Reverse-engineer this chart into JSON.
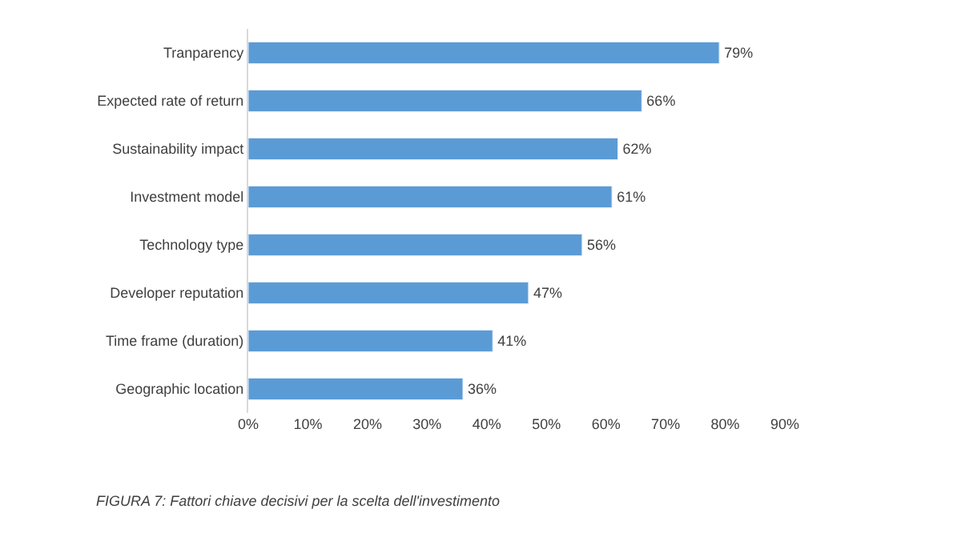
{
  "chart_data": {
    "type": "bar",
    "orientation": "horizontal",
    "categories": [
      "Tranparency",
      "Expected rate of return",
      "Sustainability impact",
      "Investment model",
      "Technology type",
      "Developer reputation",
      "Time frame (duration)",
      "Geographic location"
    ],
    "values": [
      79,
      66,
      62,
      61,
      56,
      47,
      41,
      36
    ],
    "value_labels": [
      "79%",
      "66%",
      "62%",
      "61%",
      "56%",
      "47%",
      "41%",
      "36%"
    ],
    "color": "#5b9bd5",
    "xlim": [
      0,
      90
    ],
    "xticks": [
      {
        "value": 0,
        "label": "0%"
      },
      {
        "value": 10,
        "label": "10%"
      },
      {
        "value": 20,
        "label": "20%"
      },
      {
        "value": 30,
        "label": "30%"
      },
      {
        "value": 40,
        "label": "40%"
      },
      {
        "value": 50,
        "label": "50%"
      },
      {
        "value": 60,
        "label": "60%"
      },
      {
        "value": 70,
        "label": "70%"
      },
      {
        "value": 80,
        "label": "80%"
      },
      {
        "value": 90,
        "label": "90%"
      }
    ],
    "legend": false,
    "annotations": [
      "FIGURA 7: Fattori chiave decisivi per la scelta dell'investimento"
    ]
  }
}
